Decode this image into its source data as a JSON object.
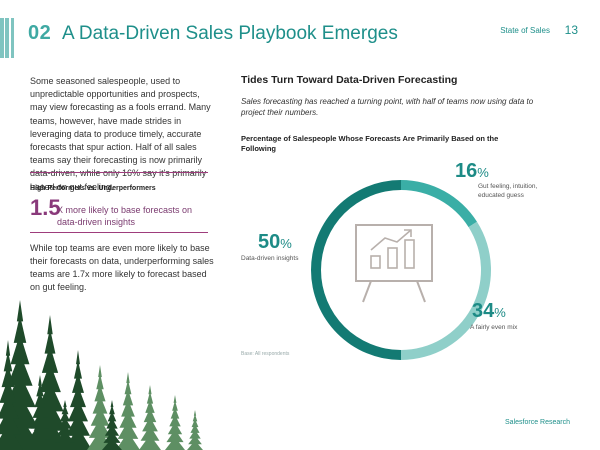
{
  "header": {
    "section_number": "02",
    "title": "A Data-Driven Sales Playbook Emerges",
    "report_name": "State of Sales",
    "page_number": "13"
  },
  "left_column": {
    "intro_paragraph": "Some seasoned salespeople, used to unpredictable opportunities and prospects, may view forecasting as a fools errand. Many teams, however, have made strides in leveraging data to produce timely, accurate forecasts that spur action. Half of all sales teams say their forecasting is now primarily data-driven, while only 16% say it's primarily based on gut feeling.",
    "comparison_label": "High Performers vs. Underperformers",
    "stat_value": "1.5",
    "stat_text": "X more likely to base forecasts on data-driven insights",
    "closing_paragraph": "While top teams are even more likely to base their forecasts on data, underperforming sales teams are 1.7x more likely to forecast based on gut feeling."
  },
  "right_column": {
    "title": "Tides Turn Toward Data-Driven Forecasting",
    "subtitle": "Sales forecasting has reached a turning point, with half of teams now using data to project their numbers.",
    "source": "Base: All respondents"
  },
  "chart_data": {
    "type": "pie",
    "donut": true,
    "title": "Percentage of Salespeople Whose Forecasts Are Primarily Based on the Following",
    "slices": [
      {
        "label": "Gut feeling, intuition, educated guess",
        "value": 16,
        "color": "#3aaea6"
      },
      {
        "label": "A fairly even mix",
        "value": 34,
        "color": "#8fcfc9"
      },
      {
        "label": "Data-driven insights",
        "value": 50,
        "color": "#137a73"
      }
    ],
    "value_suffix": "%"
  },
  "center_icon": "presentation-chart-icon",
  "footer": {
    "publisher": "Salesforce Research"
  },
  "colors": {
    "teal": "#1e8f8a",
    "plum": "#8a3a7b",
    "tree_dark": "#1f4a2a",
    "tree_light": "#5e8f63"
  }
}
